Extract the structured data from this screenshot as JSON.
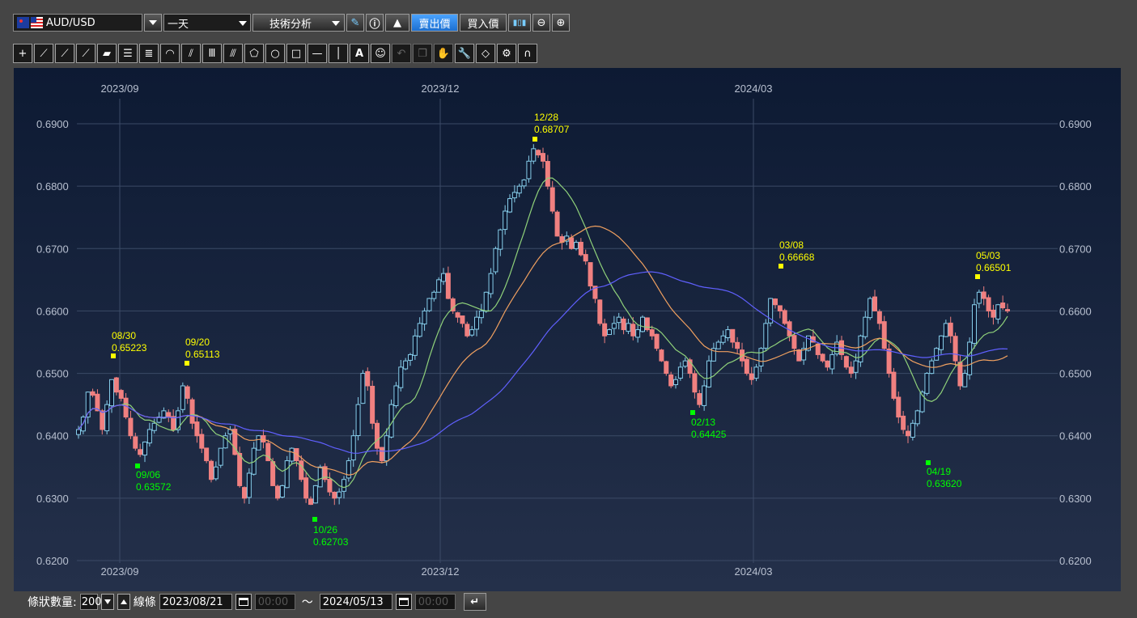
{
  "toolbar": {
    "symbol": "AUD/USD",
    "period": "一天",
    "analysis": "技術分析",
    "sell_price": "賣出價",
    "buy_price": "買入價"
  },
  "drawing_tools": [
    "cross-tool-icon",
    "line-1-icon",
    "line-2-icon",
    "line-3-icon",
    "ruler-icon",
    "hlines-icon",
    "hlines-many-icon",
    "fan-icon",
    "fan-lines-icon",
    "vlines-icon",
    "pitchfork-icon",
    "pentagon-icon",
    "circle-icon",
    "rectangle-icon",
    "hline-icon",
    "vline-icon",
    "text-tool-icon",
    "emoji-icon",
    "undo-icon",
    "copy-icon",
    "hand-icon",
    "wrench-icon",
    "eraser-icon",
    "settings-list-icon",
    "magnet-icon"
  ],
  "bottom": {
    "bars_label": "條狀數量:",
    "bars_count": "200",
    "line_label": "線條",
    "start_date": "2023/08/21",
    "start_time": "00:00",
    "tilde": "～",
    "end_date": "2024/05/13",
    "end_time": "00:00"
  },
  "chart_data": {
    "type": "candlestick",
    "y_ticks": [
      "0.6900",
      "0.6800",
      "0.6700",
      "0.6600",
      "0.6500",
      "0.6400",
      "0.6300",
      "0.6200"
    ],
    "ylim": [
      0.62,
      0.695
    ],
    "x_ticks": [
      "2023/09",
      "2023/12",
      "2024/03"
    ],
    "colors": {
      "up": "#87ceeb",
      "down": "#f08080",
      "ma_short": "#8fd17a",
      "ma_mid": "#f0a060",
      "ma_long": "#6060ff",
      "high_label": "#ffff00",
      "low_label": "#00ff00"
    },
    "annotations": [
      {
        "kind": "high",
        "date": "08/30",
        "value": "0.65223"
      },
      {
        "kind": "high",
        "date": "09/20",
        "value": "0.65113"
      },
      {
        "kind": "high",
        "date": "12/28",
        "value": "0.68707"
      },
      {
        "kind": "high",
        "date": "03/08",
        "value": "0.66668"
      },
      {
        "kind": "high",
        "date": "05/03",
        "value": "0.66501"
      },
      {
        "kind": "low",
        "date": "09/06",
        "value": "0.63572"
      },
      {
        "kind": "low",
        "date": "10/26",
        "value": "0.62703"
      },
      {
        "kind": "low",
        "date": "02/13",
        "value": "0.64425"
      },
      {
        "kind": "low",
        "date": "04/19",
        "value": "0.63620"
      }
    ],
    "close_series": [
      0.641,
      0.643,
      0.647,
      0.6465,
      0.644,
      0.641,
      0.645,
      0.649,
      0.647,
      0.646,
      0.643,
      0.64,
      0.638,
      0.637,
      0.639,
      0.641,
      0.642,
      0.643,
      0.644,
      0.643,
      0.641,
      0.644,
      0.648,
      0.646,
      0.642,
      0.64,
      0.638,
      0.636,
      0.633,
      0.635,
      0.638,
      0.64,
      0.641,
      0.637,
      0.632,
      0.63,
      0.634,
      0.638,
      0.64,
      0.639,
      0.636,
      0.632,
      0.63,
      0.632,
      0.636,
      0.638,
      0.636,
      0.633,
      0.63,
      0.629,
      0.632,
      0.635,
      0.633,
      0.631,
      0.63,
      0.631,
      0.633,
      0.636,
      0.64,
      0.645,
      0.65,
      0.648,
      0.642,
      0.638,
      0.636,
      0.64,
      0.645,
      0.648,
      0.651,
      0.652,
      0.653,
      0.656,
      0.658,
      0.66,
      0.662,
      0.663,
      0.665,
      0.666,
      0.662,
      0.66,
      0.659,
      0.658,
      0.656,
      0.657,
      0.659,
      0.66,
      0.663,
      0.666,
      0.67,
      0.673,
      0.676,
      0.678,
      0.679,
      0.68,
      0.681,
      0.684,
      0.686,
      0.685,
      0.684,
      0.68,
      0.676,
      0.672,
      0.671,
      0.672,
      0.67,
      0.671,
      0.669,
      0.668,
      0.664,
      0.662,
      0.658,
      0.656,
      0.657,
      0.658,
      0.659,
      0.657,
      0.658,
      0.656,
      0.657,
      0.659,
      0.657,
      0.656,
      0.654,
      0.652,
      0.65,
      0.648,
      0.649,
      0.651,
      0.652,
      0.65,
      0.647,
      0.645,
      0.648,
      0.652,
      0.654,
      0.655,
      0.656,
      0.657,
      0.655,
      0.654,
      0.652,
      0.65,
      0.649,
      0.651,
      0.654,
      0.658,
      0.662,
      0.661,
      0.66,
      0.658,
      0.656,
      0.654,
      0.652,
      0.654,
      0.656,
      0.655,
      0.653,
      0.652,
      0.651,
      0.653,
      0.655,
      0.653,
      0.651,
      0.65,
      0.652,
      0.656,
      0.659,
      0.662,
      0.66,
      0.658,
      0.654,
      0.65,
      0.646,
      0.643,
      0.641,
      0.64,
      0.642,
      0.644,
      0.647,
      0.65,
      0.652,
      0.654,
      0.656,
      0.658,
      0.656,
      0.652,
      0.648,
      0.65,
      0.655,
      0.661,
      0.663,
      0.662,
      0.66,
      0.659,
      0.661,
      0.6605,
      0.66
    ]
  }
}
